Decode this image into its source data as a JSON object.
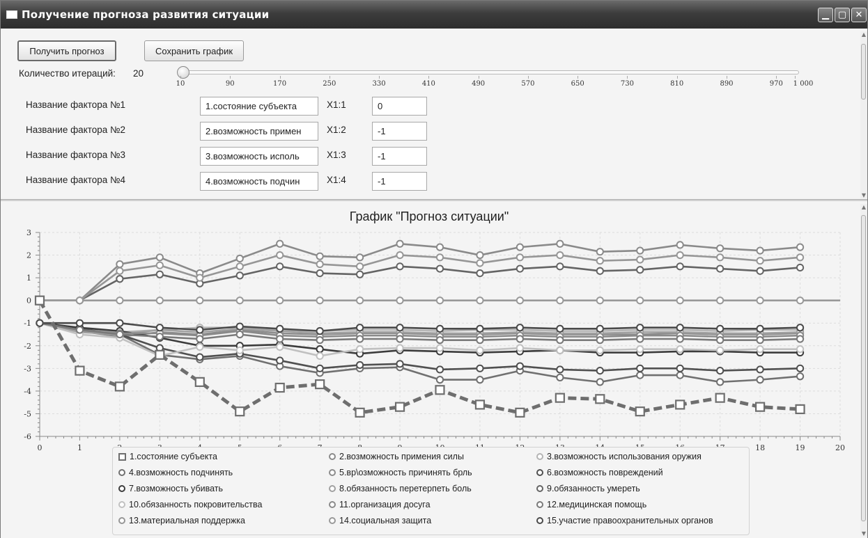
{
  "window": {
    "title": "Получение прогноза развития ситуации"
  },
  "toolbar": {
    "forecast_label": "Получить прогноз",
    "save_chart_label": "Сохранить график"
  },
  "iterations": {
    "label": "Количество итераций:",
    "value": "20",
    "slider_min": 10,
    "slider_max": 1000,
    "ticks": [
      "10",
      "90",
      "170",
      "250",
      "330",
      "410",
      "490",
      "570",
      "650",
      "730",
      "810",
      "890",
      "970",
      "1 000"
    ]
  },
  "factors": [
    {
      "label": "Название фактора №1",
      "name": "1.состояние субъекта",
      "var": "X1:1",
      "value": "0"
    },
    {
      "label": "Название фактора №2",
      "name": "2.возможность примен",
      "var": "X1:2",
      "value": "-1"
    },
    {
      "label": "Название фактора №3",
      "name": "3.возможность исполь",
      "var": "X1:3",
      "value": "-1"
    },
    {
      "label": "Название фактора №4",
      "name": "4.возможность подчин",
      "var": "X1:4",
      "value": "-1"
    }
  ],
  "chart_data": {
    "type": "line",
    "title": "График \"Прогноз ситуации\"",
    "xlim": [
      0,
      20
    ],
    "ylim": [
      -6,
      3
    ],
    "x_ticks": [
      0,
      1,
      2,
      3,
      4,
      5,
      6,
      7,
      8,
      9,
      10,
      11,
      12,
      13,
      14,
      15,
      16,
      17,
      18,
      19,
      20
    ],
    "y_ticks": [
      3,
      2,
      1,
      0,
      -1,
      -2,
      -3,
      -4,
      -5,
      -6
    ],
    "grid": true,
    "legend_position": "bottom",
    "series": [
      {
        "name": "1.состояние субъекта",
        "color": "#6e6e6e",
        "marker": "square",
        "dashed": true,
        "values": [
          0,
          -3.1,
          -3.8,
          -2.4,
          -3.6,
          -4.9,
          -3.85,
          -3.7,
          -4.95,
          -4.7,
          -3.95,
          -4.6,
          -4.95,
          -4.3,
          -4.35,
          -4.9,
          -4.6,
          -4.3,
          -4.7,
          -4.8
        ]
      },
      {
        "name": "2.возможность примения силы",
        "color": "#8a8a8a",
        "marker": "circle",
        "values": [
          0,
          0,
          1.6,
          1.9,
          1.2,
          1.85,
          2.5,
          1.95,
          1.9,
          2.5,
          2.35,
          2.0,
          2.35,
          2.5,
          2.15,
          2.2,
          2.45,
          2.3,
          2.2,
          2.35
        ]
      },
      {
        "name": "3.возможность использования оружия",
        "color": "#b4b4b4",
        "marker": "circle",
        "values": [
          -1,
          -1.3,
          -1.4,
          -1.3,
          -1.2,
          -1.2,
          -1.3,
          -1.35,
          -1.3,
          -1.3,
          -1.35,
          -1.3,
          -1.3,
          -1.35,
          -1.35,
          -1.3,
          -1.3,
          -1.35,
          -1.3,
          -1.3
        ]
      },
      {
        "name": "4.возможность подчинять",
        "color": "#707070",
        "marker": "circle",
        "values": [
          -1,
          -1.3,
          -1.5,
          -2.4,
          -2.6,
          -2.45,
          -2.9,
          -3.2,
          -3.0,
          -2.95,
          -3.5,
          -3.5,
          -3.1,
          -3.4,
          -3.6,
          -3.3,
          -3.3,
          -3.6,
          -3.5,
          -3.35
        ]
      },
      {
        "name": "5.вр\\озможность причинять брль",
        "color": "#8c8c8c",
        "marker": "circle",
        "values": [
          -1,
          -1.35,
          -1.6,
          -1.4,
          -1.5,
          -1.3,
          -1.45,
          -1.5,
          -1.45,
          -1.45,
          -1.5,
          -1.5,
          -1.45,
          -1.5,
          -1.5,
          -1.5,
          -1.45,
          -1.5,
          -1.5,
          -1.45
        ]
      },
      {
        "name": "6.возможность повреждений",
        "color": "#505050",
        "marker": "circle",
        "values": [
          -1,
          -1.25,
          -1.5,
          -2.1,
          -2.5,
          -2.35,
          -2.65,
          -3.0,
          -2.85,
          -2.8,
          -3.05,
          -3.0,
          -2.9,
          -3.05,
          -3.1,
          -3.0,
          -3.0,
          -3.1,
          -3.05,
          -3.0
        ]
      },
      {
        "name": "7.возможность убивать",
        "color": "#3c3c3c",
        "marker": "circle",
        "values": [
          -1,
          -1.2,
          -1.35,
          -1.65,
          -2.0,
          -2.0,
          -1.95,
          -2.15,
          -2.35,
          -2.2,
          -2.25,
          -2.3,
          -2.25,
          -2.2,
          -2.3,
          -2.3,
          -2.25,
          -2.25,
          -2.3,
          -2.3
        ]
      },
      {
        "name": "8.обязанность перетерпеть боль",
        "color": "#a0a0a0",
        "marker": "circle",
        "values": [
          -1,
          -1.4,
          -1.5,
          -1.3,
          -1.4,
          -1.25,
          -1.35,
          -1.45,
          -1.4,
          -1.4,
          -1.45,
          -1.45,
          -1.4,
          -1.45,
          -1.45,
          -1.4,
          -1.4,
          -1.45,
          -1.45,
          -1.4
        ]
      },
      {
        "name": "9.обязанность умереть",
        "color": "#646464",
        "marker": "circle",
        "values": [
          0,
          0,
          0.95,
          1.15,
          0.75,
          1.1,
          1.5,
          1.2,
          1.15,
          1.5,
          1.4,
          1.2,
          1.4,
          1.5,
          1.3,
          1.35,
          1.5,
          1.4,
          1.3,
          1.45
        ]
      },
      {
        "name": "10.обязанность покровительства",
        "color": "#c0c0c0",
        "marker": "circle",
        "values": [
          -1,
          -1.5,
          -1.65,
          -2.45,
          -2.05,
          -2.2,
          -2.05,
          -2.45,
          -2.15,
          -2.1,
          -2.1,
          -2.2,
          -2.1,
          -2.2,
          -2.2,
          -2.15,
          -2.15,
          -2.2,
          -2.15,
          -2.15
        ]
      },
      {
        "name": "11.организация досуга",
        "color": "#8a8a8a",
        "marker": "circle",
        "values": [
          -1,
          -1.3,
          -1.45,
          -1.45,
          -1.55,
          -1.35,
          -1.55,
          -1.6,
          -1.55,
          -1.55,
          -1.6,
          -1.6,
          -1.55,
          -1.6,
          -1.6,
          -1.55,
          -1.55,
          -1.6,
          -1.6,
          -1.55
        ]
      },
      {
        "name": "12.медицинская помощь",
        "color": "#7a7a7a",
        "marker": "circle",
        "values": [
          -1,
          -1.3,
          -1.5,
          -1.6,
          -1.7,
          -1.5,
          -1.7,
          -1.75,
          -1.7,
          -1.7,
          -1.75,
          -1.75,
          -1.7,
          -1.75,
          -1.75,
          -1.7,
          -1.7,
          -1.75,
          -1.75,
          -1.7
        ]
      },
      {
        "name": "13.материальная поддержка",
        "color": "#969696",
        "marker": "circle",
        "values": [
          0,
          0,
          1.3,
          1.55,
          1.0,
          1.5,
          2.0,
          1.6,
          1.5,
          2.0,
          1.9,
          1.65,
          1.9,
          2.0,
          1.75,
          1.8,
          2.0,
          1.9,
          1.75,
          1.9
        ]
      },
      {
        "name": "14.социальная защита",
        "color": "#999999",
        "marker": "circle",
        "values": [
          0,
          0,
          0,
          0,
          0,
          0,
          0,
          0,
          0,
          0,
          0,
          0,
          0,
          0,
          0,
          0,
          0,
          0,
          0,
          0
        ]
      },
      {
        "name": "15.участие правоохранительных органов",
        "color": "#4a4a4a",
        "marker": "circle",
        "values": [
          -1,
          -1.0,
          -1.0,
          -1.2,
          -1.3,
          -1.15,
          -1.25,
          -1.35,
          -1.2,
          -1.2,
          -1.25,
          -1.25,
          -1.2,
          -1.25,
          -1.25,
          -1.2,
          -1.2,
          -1.25,
          -1.25,
          -1.2
        ]
      }
    ]
  }
}
